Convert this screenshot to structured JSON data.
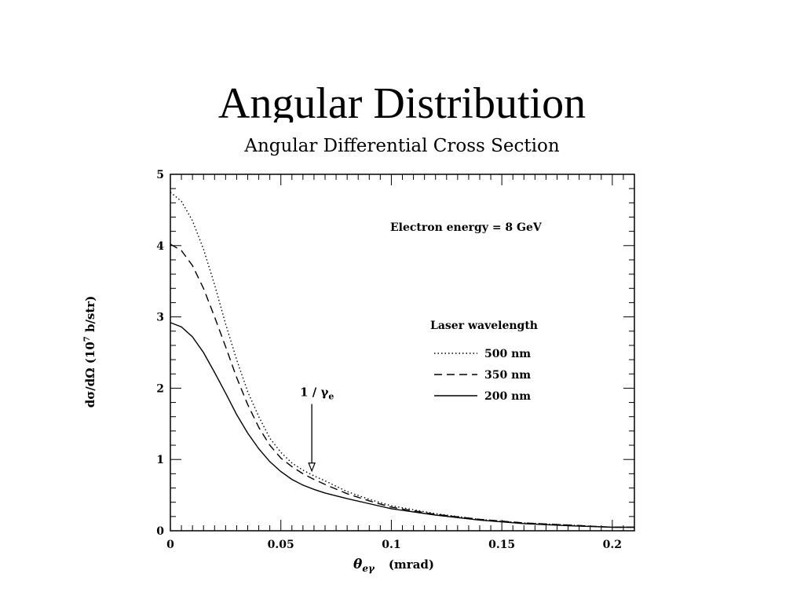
{
  "slide": {
    "title": "Angular Distribution"
  },
  "chart_data": {
    "type": "line",
    "title": "Angular Differential Cross Section",
    "xlabel": "θ",
    "xlabel_sub": "eγ",
    "xlabel_unit": "(mrad)",
    "ylabel": "dσ/dΩ (10",
    "ylabel_sup": "7",
    "ylabel_unit": " b/str)",
    "xlim": [
      0,
      0.21
    ],
    "ylim": [
      0,
      5
    ],
    "x_ticks": [
      0,
      0.05,
      0.1,
      0.15,
      0.2
    ],
    "x_tick_labels": [
      "0",
      "0.05",
      "0.1",
      "0.15",
      "0.2"
    ],
    "y_ticks": [
      0,
      1,
      2,
      3,
      4,
      5
    ],
    "y_tick_labels": [
      "0",
      "1",
      "2",
      "3",
      "4",
      "5"
    ],
    "grid": false,
    "legend_title": "Laser wavelength",
    "legend_position": "right",
    "annotation_energy": "Electron energy = 8 GeV",
    "annotation_arrow": {
      "label": "1 / γ",
      "label_sub": "e",
      "x": 0.064,
      "y_top": 1.8,
      "y_tip": 0.95
    },
    "series": [
      {
        "name": "500 nm",
        "style": "dotted",
        "x": [
          0,
          0.005,
          0.01,
          0.015,
          0.02,
          0.025,
          0.03,
          0.035,
          0.04,
          0.045,
          0.05,
          0.055,
          0.06,
          0.065,
          0.07,
          0.08,
          0.09,
          0.1,
          0.12,
          0.14,
          0.16,
          0.18,
          0.2,
          0.21
        ],
        "y": [
          4.75,
          4.62,
          4.35,
          3.95,
          3.45,
          2.9,
          2.4,
          1.95,
          1.6,
          1.3,
          1.1,
          0.95,
          0.85,
          0.77,
          0.7,
          0.55,
          0.44,
          0.35,
          0.24,
          0.16,
          0.11,
          0.08,
          0.05,
          0.05
        ]
      },
      {
        "name": "350 nm",
        "style": "dashed",
        "x": [
          0,
          0.005,
          0.01,
          0.015,
          0.02,
          0.025,
          0.03,
          0.035,
          0.04,
          0.045,
          0.05,
          0.055,
          0.06,
          0.065,
          0.07,
          0.08,
          0.09,
          0.1,
          0.12,
          0.14,
          0.16,
          0.18,
          0.2,
          0.21
        ],
        "y": [
          4.02,
          3.93,
          3.72,
          3.4,
          3.0,
          2.58,
          2.15,
          1.77,
          1.45,
          1.2,
          1.02,
          0.9,
          0.8,
          0.72,
          0.65,
          0.52,
          0.42,
          0.33,
          0.23,
          0.16,
          0.11,
          0.08,
          0.05,
          0.05
        ]
      },
      {
        "name": "200 nm",
        "style": "solid",
        "x": [
          0,
          0.005,
          0.01,
          0.015,
          0.02,
          0.025,
          0.03,
          0.035,
          0.04,
          0.045,
          0.05,
          0.055,
          0.06,
          0.065,
          0.07,
          0.08,
          0.09,
          0.1,
          0.12,
          0.14,
          0.16,
          0.18,
          0.2,
          0.21
        ],
        "y": [
          2.92,
          2.86,
          2.72,
          2.5,
          2.22,
          1.93,
          1.63,
          1.37,
          1.15,
          0.97,
          0.83,
          0.72,
          0.64,
          0.58,
          0.53,
          0.45,
          0.38,
          0.31,
          0.22,
          0.15,
          0.1,
          0.07,
          0.05,
          0.05
        ]
      }
    ]
  }
}
